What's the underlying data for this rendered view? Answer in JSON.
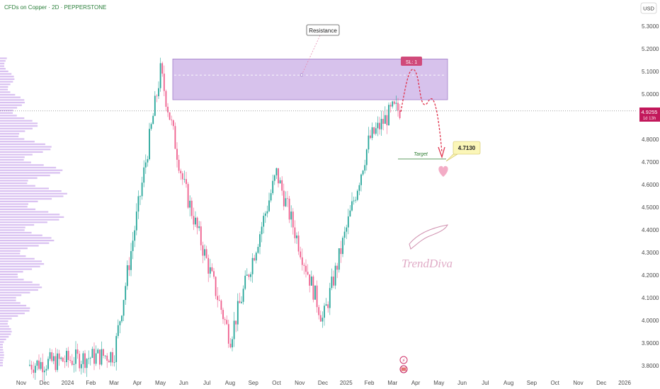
{
  "chart_data": {
    "type": "candlestick",
    "title": "CFDs on Copper · 2D · PEPPERSTONE",
    "currency": "USD",
    "x_ticks": [
      "Nov",
      "Dec",
      "2024",
      "Feb",
      "Mar",
      "Apr",
      "May",
      "Jun",
      "Jul",
      "Aug",
      "Sep",
      "Oct",
      "Nov",
      "Dec",
      "2025",
      "Feb",
      "Mar",
      "Apr",
      "May",
      "Jun",
      "Jul",
      "Aug",
      "Sep",
      "Oct",
      "Nov",
      "Dec",
      "2026"
    ],
    "y_ticks": [
      "5.3000",
      "5.2000",
      "5.1000",
      "5.0000",
      "4.9000",
      "4.8000",
      "4.7000",
      "4.6000",
      "4.5000",
      "4.4000",
      "4.3000",
      "4.2000",
      "4.1000",
      "4.0000",
      "3.9000",
      "3.8000"
    ],
    "ylim": [
      3.75,
      5.38
    ],
    "current_price": "4.9255",
    "countdown": "1d 13h",
    "resistance_label": "Resistance",
    "resistance_zone": [
      4.975,
      5.155
    ],
    "sl_label": "SL: 1",
    "target_label": "Target",
    "target_value": "4.7130",
    "target_price": 4.713,
    "watermark": "TrendDiva",
    "key_points": [
      {
        "date": "Nov 2023",
        "price": 3.8
      },
      {
        "date": "Mar 2024",
        "price": 3.85
      },
      {
        "date": "May 2024",
        "price": 5.1
      },
      {
        "date": "Jun 2024",
        "price": 4.6
      },
      {
        "date": "Aug 2024",
        "price": 3.92
      },
      {
        "date": "Oct 2024",
        "price": 4.65
      },
      {
        "date": "Dec 2024",
        "price": 4.0
      },
      {
        "date": "Feb 2025",
        "price": 4.8
      },
      {
        "date": "Mar 2025",
        "price": 4.93
      }
    ],
    "colors": {
      "up": "#26a69a",
      "down": "#ef5f8d",
      "zone": "#c9aee6",
      "volume_profile": "#b98ce6",
      "price_line": "#c2185b"
    }
  }
}
